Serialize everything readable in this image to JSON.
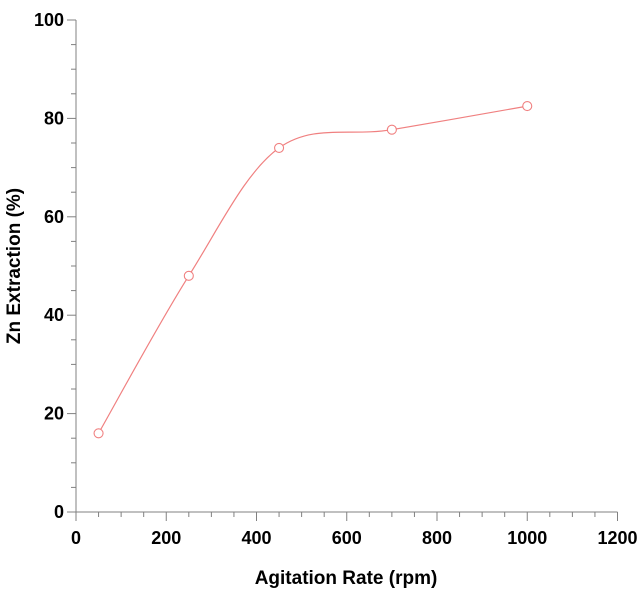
{
  "chart_data": {
    "type": "line",
    "title": "",
    "xlabel": "Agitation Rate (rpm)",
    "ylabel": "Zn Extraction (%)",
    "xlim": [
      0,
      1200
    ],
    "ylim": [
      0,
      100
    ],
    "xticks": [
      "0",
      "200",
      "400",
      "600",
      "800",
      "1000",
      "1200"
    ],
    "yticks": [
      "0",
      "20",
      "40",
      "60",
      "80",
      "100"
    ],
    "grid": false,
    "series": [
      {
        "name": "Zn Extraction",
        "color": "#f08080",
        "marker": "open-circle",
        "smooth": true,
        "x": [
          50,
          250,
          450,
          700,
          1000
        ],
        "y": [
          16,
          48,
          74,
          77.7,
          82.5
        ]
      }
    ]
  }
}
